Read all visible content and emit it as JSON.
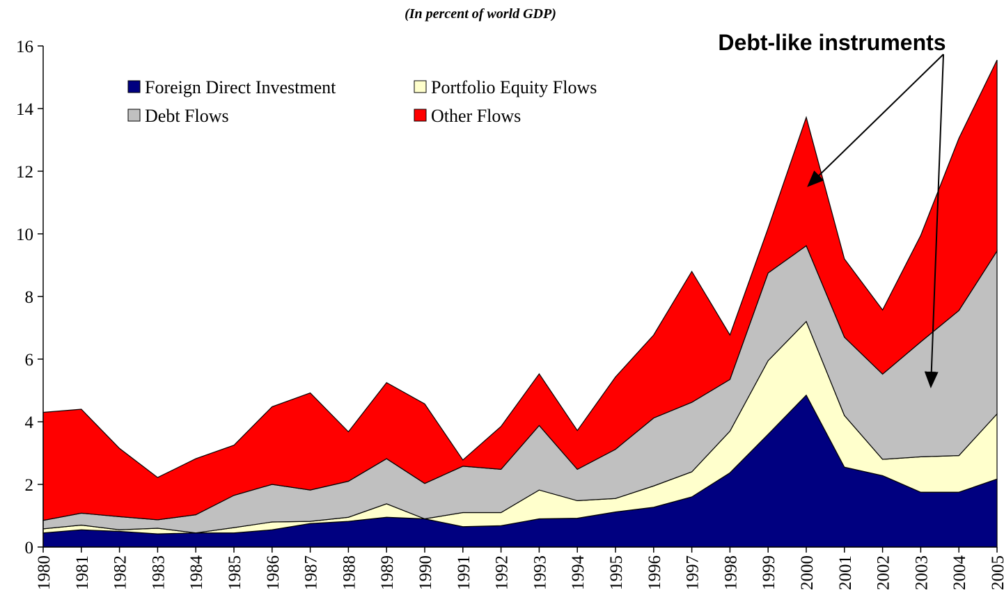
{
  "chart_data": {
    "type": "stacked_area",
    "subtitle": "(In percent of world GDP)",
    "annotation": "Debt-like instruments",
    "categories": [
      "1980",
      "1981",
      "1982",
      "1983",
      "1984",
      "1985",
      "1986",
      "1987",
      "1988",
      "1989",
      "1990",
      "1991",
      "1992",
      "1993",
      "1994",
      "1995",
      "1996",
      "1997",
      "1998",
      "1999",
      "2000",
      "2001",
      "2002",
      "2003",
      "2004",
      "2005"
    ],
    "series": [
      {
        "name": "Foreign Direct Investment",
        "color": "#000080",
        "values": [
          0.45,
          0.55,
          0.5,
          0.42,
          0.45,
          0.45,
          0.55,
          0.75,
          0.82,
          0.95,
          0.9,
          0.65,
          0.68,
          0.9,
          0.92,
          1.12,
          1.27,
          1.6,
          2.37,
          3.6,
          4.85,
          2.55,
          2.28,
          1.75,
          1.75,
          2.17
        ]
      },
      {
        "name": "Portfolio Equity Flows",
        "color": "#ffffcc",
        "values": [
          0.13,
          0.15,
          0.05,
          0.18,
          0,
          0.17,
          0.25,
          0.07,
          0.13,
          0.43,
          0,
          0.45,
          0.42,
          0.92,
          0.56,
          0.43,
          0.68,
          0.8,
          1.33,
          2.35,
          2.35,
          1.65,
          0.52,
          1.13,
          1.17,
          2.08
        ]
      },
      {
        "name": "Debt Flows",
        "color": "#c0c0c0",
        "values": [
          0.27,
          0.38,
          0.42,
          0.27,
          0.58,
          1.03,
          1.2,
          1.0,
          1.15,
          1.44,
          1.13,
          1.48,
          1.38,
          2.06,
          1.0,
          1.57,
          2.17,
          2.22,
          1.65,
          2.8,
          2.42,
          2.5,
          2.72,
          3.67,
          4.63,
          5.2
        ]
      },
      {
        "name": "Other Flows",
        "color": "#ff0000",
        "values": [
          3.45,
          3.32,
          2.18,
          1.35,
          1.79,
          1.6,
          2.48,
          3.1,
          1.58,
          2.43,
          2.54,
          0.2,
          1.37,
          1.65,
          1.24,
          2.31,
          2.65,
          4.18,
          1.42,
          1.43,
          4.1,
          2.5,
          2.05,
          3.4,
          5.5,
          6.1
        ]
      }
    ],
    "ylim": [
      0,
      16
    ],
    "yticks": [
      0,
      2,
      4,
      6,
      8,
      10,
      12,
      14,
      16
    ]
  }
}
